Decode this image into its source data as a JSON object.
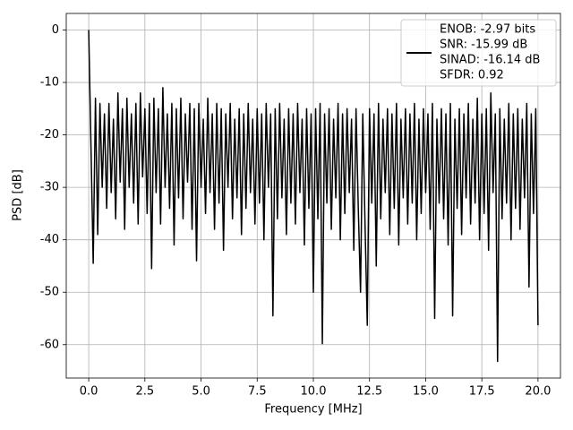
{
  "chart_data": {
    "type": "line",
    "xlabel": "Frequency [MHz]",
    "ylabel": "PSD [dB]",
    "xlim": [
      -1,
      21
    ],
    "ylim": [
      -66.36,
      3.16
    ],
    "xticks": [
      {
        "value": 0,
        "label": "0.0"
      },
      2.5,
      {
        "value": 5,
        "label": "5.0"
      },
      7.5,
      {
        "value": 10,
        "label": "10.0"
      },
      12.5,
      {
        "value": 15,
        "label": "15.0"
      },
      17.5,
      {
        "value": 20,
        "label": "20.0"
      }
    ],
    "yticks": [
      0,
      -10,
      -20,
      -30,
      -40,
      -50,
      -60
    ],
    "grid": true,
    "legend": "upper right",
    "x": [
      0,
      0.1,
      0.2,
      0.3,
      0.4,
      0.5,
      0.6,
      0.7,
      0.8,
      0.9,
      1,
      1.1,
      1.2,
      1.3,
      1.4,
      1.5,
      1.6,
      1.7,
      1.8,
      1.9,
      2,
      2.1,
      2.2,
      2.3,
      2.4,
      2.5,
      2.6,
      2.7,
      2.8,
      2.9,
      3,
      3.1,
      3.2,
      3.3,
      3.4,
      3.5,
      3.6,
      3.7,
      3.8,
      3.9,
      4,
      4.1,
      4.2,
      4.3,
      4.4,
      4.5,
      4.6,
      4.7,
      4.8,
      4.9,
      5,
      5.1,
      5.2,
      5.3,
      5.4,
      5.5,
      5.6,
      5.7,
      5.8,
      5.9,
      6,
      6.1,
      6.2,
      6.3,
      6.4,
      6.5,
      6.6,
      6.7,
      6.8,
      6.9,
      7,
      7.1,
      7.2,
      7.3,
      7.4,
      7.5,
      7.6,
      7.7,
      7.8,
      7.9,
      8,
      8.1,
      8.2,
      8.3,
      8.4,
      8.5,
      8.6,
      8.7,
      8.8,
      8.9,
      9,
      9.1,
      9.2,
      9.3,
      9.4,
      9.5,
      9.6,
      9.7,
      9.8,
      9.9,
      10,
      10.1,
      10.2,
      10.3,
      10.4,
      10.5,
      10.6,
      10.7,
      10.8,
      10.9,
      11,
      11.1,
      11.2,
      11.3,
      11.4,
      11.5,
      11.6,
      11.7,
      11.8,
      11.9,
      12,
      12.1,
      12.2,
      12.3,
      12.4,
      12.5,
      12.6,
      12.7,
      12.8,
      12.9,
      13,
      13.1,
      13.2,
      13.3,
      13.4,
      13.5,
      13.6,
      13.7,
      13.8,
      13.9,
      14,
      14.1,
      14.2,
      14.3,
      14.4,
      14.5,
      14.6,
      14.7,
      14.8,
      14.9,
      15,
      15.1,
      15.2,
      15.3,
      15.4,
      15.5,
      15.6,
      15.7,
      15.8,
      15.9,
      16,
      16.1,
      16.2,
      16.3,
      16.4,
      16.5,
      16.6,
      16.7,
      16.8,
      16.9,
      17,
      17.1,
      17.2,
      17.3,
      17.4,
      17.5,
      17.6,
      17.7,
      17.8,
      17.9,
      18,
      18.1,
      18.2,
      18.3,
      18.4,
      18.5,
      18.6,
      18.7,
      18.8,
      18.9,
      19,
      19.1,
      19.2,
      19.3,
      19.4,
      19.5,
      19.6,
      19.7,
      19.8,
      19.9,
      20
    ],
    "series": [
      {
        "name": [
          "ENOB: -2.97 bits",
          "SNR: -15.99 dB",
          "SINAD: -16.14 dB",
          "SFDR: 0.92"
        ],
        "color": "#000000",
        "values": [
          0,
          -22,
          -44.5,
          -13,
          -39,
          -14,
          -30,
          -16,
          -34,
          -14,
          -31,
          -17,
          -36,
          -12,
          -29,
          -15,
          -38,
          -13,
          -30,
          -16,
          -33,
          -14,
          -37,
          -12,
          -28,
          -15,
          -35,
          -14,
          -45.5,
          -13,
          -31,
          -15,
          -37,
          -11,
          -30,
          -16,
          -34,
          -14,
          -41,
          -15,
          -32,
          -13,
          -36,
          -16,
          -29,
          -14,
          -38,
          -15,
          -44,
          -14,
          -30,
          -17,
          -35,
          -13,
          -31,
          -16,
          -38,
          -14,
          -33,
          -15,
          -42,
          -16,
          -30,
          -14,
          -36,
          -17,
          -32,
          -15,
          -39,
          -16,
          -34,
          -14,
          -31,
          -17,
          -37,
          -15,
          -33,
          -16,
          -40,
          -14,
          -30,
          -16,
          -54.5,
          -15,
          -36,
          -14,
          -32,
          -17,
          -39,
          -15,
          -33,
          -16,
          -37,
          -14,
          -31,
          -17,
          -41,
          -15,
          -34,
          -16,
          -50,
          -15,
          -36,
          -14,
          -59.8,
          -16,
          -33,
          -15,
          -38,
          -17,
          -32,
          -14,
          -40,
          -16,
          -35,
          -15,
          -31,
          -17,
          -42,
          -15,
          -34,
          -50,
          -16,
          -37,
          -56.3,
          -15,
          -33,
          -16,
          -45,
          -14,
          -36,
          -17,
          -31,
          -15,
          -39,
          -16,
          -34,
          -14,
          -41,
          -17,
          -32,
          -15,
          -37,
          -16,
          -33,
          -14,
          -40,
          -17,
          -35,
          -15,
          -31,
          -16,
          -38,
          -14,
          -55,
          -17,
          -33,
          -15,
          -36,
          -16,
          -41,
          -14,
          -54.5,
          -17,
          -34,
          -15,
          -39,
          -16,
          -32,
          -14,
          -37,
          -17,
          -33,
          -13,
          -40,
          -16,
          -35,
          -15,
          -42,
          -12,
          -31,
          -16,
          -63.2,
          -15,
          -36,
          -17,
          -33,
          -14,
          -40,
          -16,
          -34,
          -15,
          -38,
          -17,
          -32,
          -14,
          -49,
          -16,
          -35,
          -15,
          -56.3
        ]
      }
    ]
  }
}
